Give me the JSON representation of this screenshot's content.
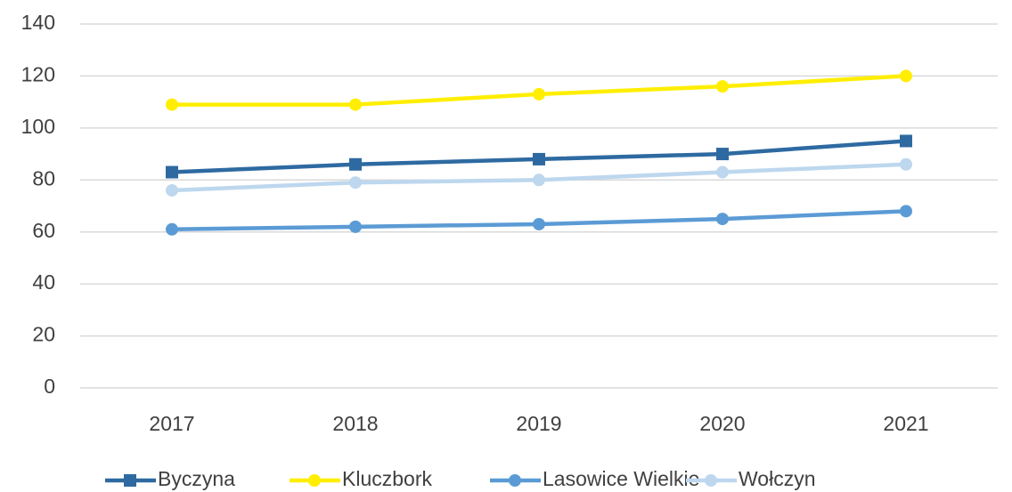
{
  "chart_data": {
    "type": "line",
    "categories": [
      "2017",
      "2018",
      "2019",
      "2020",
      "2021"
    ],
    "series": [
      {
        "name": "Byczyna",
        "color": "#2e6aa1",
        "marker": "square",
        "values": [
          83,
          86,
          88,
          90,
          95
        ]
      },
      {
        "name": "Kluczbork",
        "color": "#ffee00",
        "marker": "circle",
        "values": [
          109,
          109,
          113,
          116,
          120
        ]
      },
      {
        "name": "Lasowice Wielkie",
        "color": "#5b9bd5",
        "marker": "circle",
        "values": [
          61,
          62,
          63,
          65,
          68
        ]
      },
      {
        "name": "Wołczyn",
        "color": "#bdd7ee",
        "marker": "circle",
        "values": [
          76,
          79,
          80,
          83,
          86
        ]
      }
    ],
    "ylim": [
      0,
      140
    ],
    "yticks": [
      0,
      20,
      40,
      60,
      80,
      100,
      120,
      140
    ],
    "grid": true,
    "legend": "bottom"
  }
}
